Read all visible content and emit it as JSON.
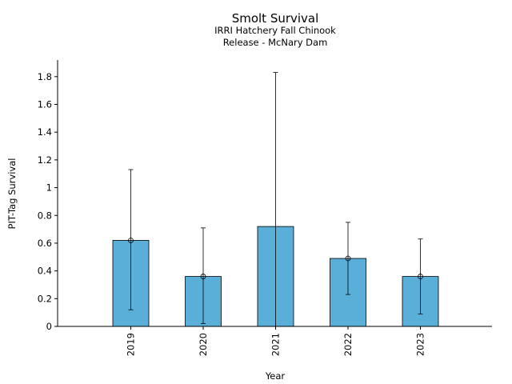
{
  "chart_data": {
    "type": "bar",
    "title": "Smolt Survival",
    "subtitle_lines": [
      "IRRI Hatchery Fall Chinook",
      "Release - McNary Dam"
    ],
    "xlabel": "Year",
    "ylabel": "PIT-Tag Survival",
    "categories": [
      "2019",
      "2020",
      "2021",
      "2022",
      "2023"
    ],
    "values": [
      0.62,
      0.36,
      0.72,
      0.49,
      0.36
    ],
    "error_low": [
      0.12,
      0.02,
      0.0,
      0.23,
      0.09
    ],
    "error_high": [
      1.13,
      0.71,
      1.83,
      0.75,
      0.63
    ],
    "markers": [
      true,
      true,
      false,
      true,
      true
    ],
    "ylim": [
      0,
      1.92
    ],
    "yticks": [
      0,
      0.2,
      0.4,
      0.6,
      0.8,
      1,
      1.2,
      1.4,
      1.6,
      1.8
    ],
    "ytick_labels": [
      "0",
      "0.2",
      "0.4",
      "0.6",
      "0.8",
      "1",
      "1.2",
      "1.4",
      "1.6",
      "1.8"
    ],
    "bar_color": "#5aafd8",
    "grid": false
  }
}
